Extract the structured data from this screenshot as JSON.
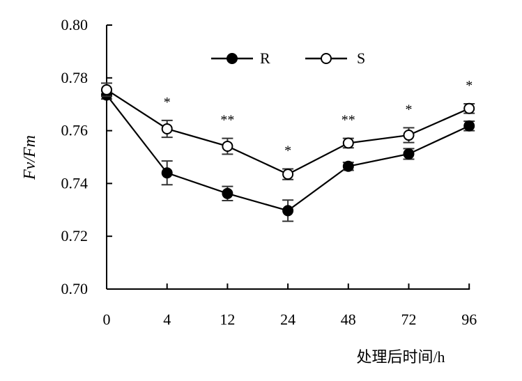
{
  "chart_data": {
    "type": "line",
    "ylabel": "Fv/Fm",
    "xlabel": "处理后时间/h",
    "categories": [
      "0",
      "4",
      "12",
      "24",
      "48",
      "72",
      "96"
    ],
    "ylim": [
      0.7,
      0.8
    ],
    "yticks": [
      "0.70",
      "0.72",
      "0.74",
      "0.76",
      "0.78",
      "0.80"
    ],
    "grid": false,
    "legend_position": "top-center",
    "series": [
      {
        "name": "R",
        "marker": "filled-circle",
        "color": "#000000",
        "values": [
          0.7735,
          0.744,
          0.7362,
          0.7297,
          0.7465,
          0.7512,
          0.7618
        ],
        "errors": [
          0.0015,
          0.0045,
          0.0027,
          0.004,
          0.0015,
          0.002,
          0.0018
        ]
      },
      {
        "name": "S",
        "marker": "open-circle",
        "color": "#000000",
        "values": [
          0.7755,
          0.7607,
          0.7541,
          0.7435,
          0.7553,
          0.7583,
          0.7684
        ],
        "errors": [
          0.0025,
          0.0032,
          0.003,
          0.002,
          0.0018,
          0.0028,
          0.0018
        ]
      }
    ],
    "significance": [
      "",
      "*",
      "**",
      "*",
      "**",
      "*",
      "*"
    ]
  }
}
